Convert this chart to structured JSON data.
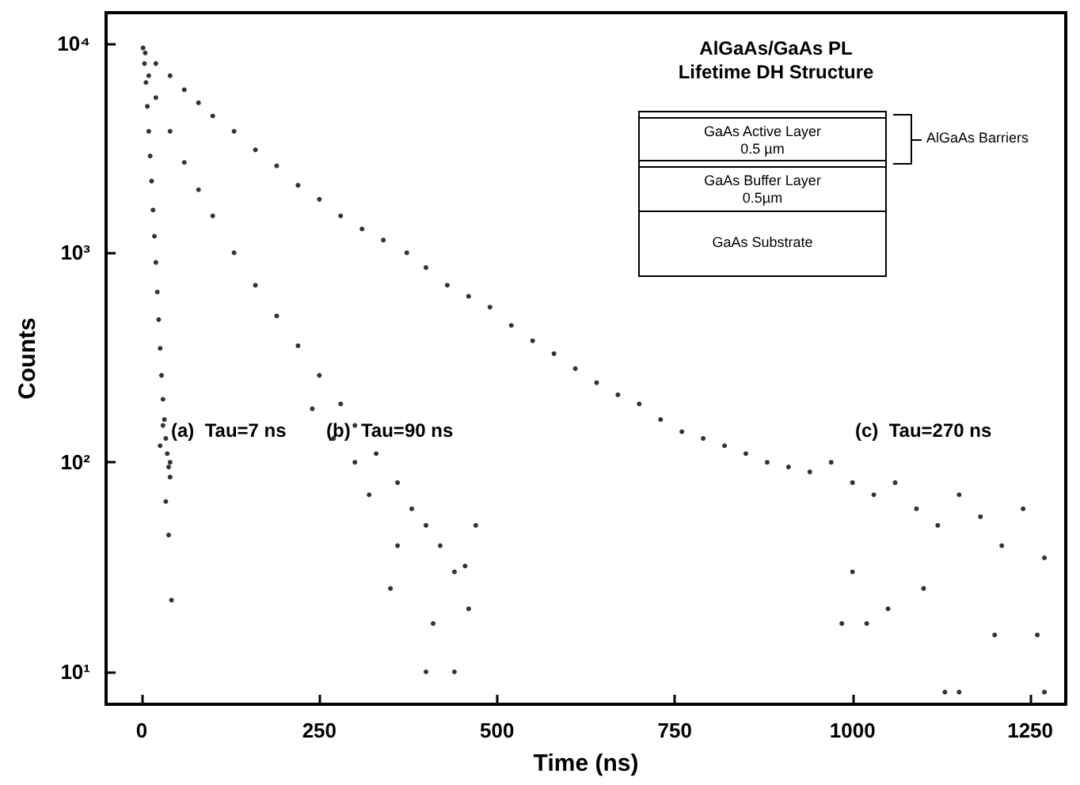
{
  "chart_data": {
    "type": "scatter",
    "title": "AlGaAs/GaAs PL\nLifetime DH Structure",
    "xlabel": "Time (ns)",
    "ylabel": "Counts",
    "log": "y",
    "grid": false,
    "marker": "circle",
    "xlim": [
      -50,
      1300
    ],
    "xticks": [
      0,
      250,
      500,
      750,
      1000,
      1250
    ],
    "ylim": [
      7,
      14000
    ],
    "yticks": [
      {
        "value": 10,
        "label": "10¹"
      },
      {
        "value": 100,
        "label": "10²"
      },
      {
        "value": 1000,
        "label": "10³"
      },
      {
        "value": 10000,
        "label": "10⁴"
      }
    ],
    "annotations": [
      "(a)  Tau=7 ns",
      "(b)  Tau=90 ns",
      "(c)  Tau=270 ns",
      "GaAs Active Layer",
      "0.5 µm",
      "GaAs Buffer Layer",
      "0.5µm",
      "GaAs Substrate",
      "AlGaAs Barriers"
    ],
    "series": [
      {
        "color": "#000000",
        "x": [
          2,
          4,
          6,
          8,
          10,
          12,
          14,
          16,
          18,
          20,
          22,
          24,
          26,
          28,
          30,
          32,
          34,
          36,
          38,
          40,
          26,
          34,
          38,
          42,
          30,
          40
        ],
        "values": [
          9500,
          8000,
          6500,
          5000,
          3800,
          2900,
          2200,
          1600,
          1200,
          900,
          650,
          480,
          350,
          260,
          200,
          160,
          130,
          110,
          95,
          85,
          120,
          65,
          45,
          22,
          150,
          100
        ]
      },
      {
        "color": "#000000",
        "x": [
          10,
          20,
          40,
          60,
          80,
          100,
          130,
          160,
          190,
          220,
          250,
          280,
          300,
          330,
          360,
          380,
          400,
          420,
          440,
          460,
          470,
          400,
          440,
          350,
          320,
          300,
          270,
          240,
          410,
          360,
          455
        ],
        "values": [
          7000,
          5500,
          3800,
          2700,
          2000,
          1500,
          1000,
          700,
          500,
          360,
          260,
          190,
          150,
          110,
          80,
          60,
          50,
          40,
          30,
          20,
          50,
          10,
          10,
          25,
          70,
          100,
          130,
          180,
          17,
          40,
          32
        ]
      },
      {
        "color": "#000000",
        "x": [
          5,
          20,
          40,
          60,
          80,
          100,
          130,
          160,
          190,
          220,
          250,
          280,
          310,
          340,
          373,
          400,
          430,
          460,
          490,
          520,
          550,
          580,
          610,
          640,
          670,
          700,
          730,
          760,
          790,
          820,
          850,
          880,
          910,
          940,
          970,
          1000,
          1030,
          1060,
          1090,
          1120,
          1150,
          1180,
          1210,
          1240,
          1270,
          1000,
          1050,
          1100,
          1130,
          1150,
          1270,
          1200,
          1260,
          985,
          1020
        ],
        "values": [
          9000,
          8000,
          7000,
          6000,
          5200,
          4500,
          3800,
          3100,
          2600,
          2100,
          1800,
          1500,
          1300,
          1150,
          1000,
          850,
          700,
          620,
          550,
          450,
          380,
          330,
          280,
          240,
          210,
          190,
          160,
          140,
          130,
          120,
          110,
          100,
          95,
          90,
          100,
          80,
          70,
          80,
          60,
          50,
          70,
          55,
          40,
          60,
          35,
          30,
          20,
          25,
          8,
          8,
          8,
          15,
          15,
          17,
          17
        ]
      }
    ]
  }
}
